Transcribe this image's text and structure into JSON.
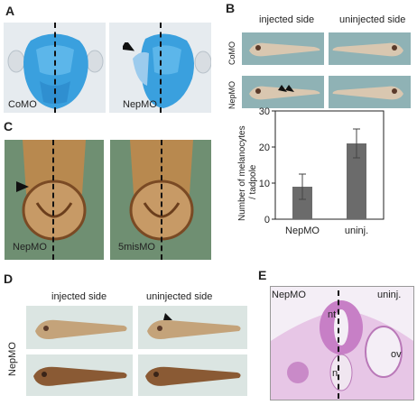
{
  "panels": {
    "A": {
      "label": "A",
      "left_caption": "CoMO",
      "right_caption": "NepMO"
    },
    "B": {
      "label": "B",
      "col1": "injected side",
      "col2": "uninjected side",
      "row1": "CoMO",
      "row2": "NepMO"
    },
    "C": {
      "label": "C",
      "left_caption": "NepMO",
      "right_caption": "5misMO"
    },
    "D": {
      "label": "D",
      "col1": "injected side",
      "col2": "uninjected side",
      "row_label": "NepMO"
    },
    "E": {
      "label": "E",
      "left_label": "NepMO",
      "right_label": "uninj.",
      "nt": "nt",
      "n": "n",
      "ov": "ov"
    }
  },
  "chart_data": {
    "type": "bar",
    "categories": [
      "NepMO",
      "uninj."
    ],
    "values": [
      9,
      21
    ],
    "errors": [
      3.5,
      4
    ],
    "ylabel": "Number of melanocytes / tadpole",
    "ylabel_line1": "Number of melanocytes",
    "ylabel_line2": "/ tadpole",
    "ylim": [
      0,
      30
    ],
    "yticks": [
      "0",
      "10",
      "20",
      "30"
    ],
    "bar_color": "#6b6b6b"
  }
}
